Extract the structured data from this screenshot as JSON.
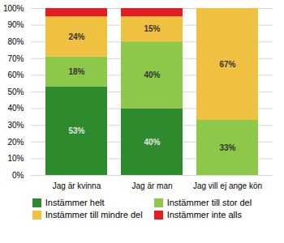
{
  "chart_data": {
    "type": "bar",
    "stacked": true,
    "data_labels": true,
    "categories": [
      "Jag är kvinna",
      "Jag är man",
      "Jag vill ej ange kön"
    ],
    "series": [
      {
        "name": "Instämmer helt",
        "color": "#2d8a2d",
        "values": [
          53,
          40,
          0
        ],
        "value_labels": [
          "53%",
          "40%",
          null
        ]
      },
      {
        "name": "Instämmer till stor del",
        "color": "#8dc84b",
        "values": [
          18,
          40,
          33
        ],
        "value_labels": [
          "18%",
          "40%",
          "33%"
        ]
      },
      {
        "name": "Instämmer till mindre del",
        "color": "#f0c040",
        "values": [
          24,
          15,
          67
        ],
        "value_labels": [
          "24%",
          "15%",
          "67%"
        ]
      },
      {
        "name": "Instämmer inte alls",
        "color": "#e02020",
        "values": [
          5,
          5,
          0
        ]
      }
    ],
    "ylim": [
      0,
      100
    ],
    "yticks": [
      {
        "value": 0,
        "label": "0%"
      },
      {
        "value": 10,
        "label": "10%"
      },
      {
        "value": 20,
        "label": "20%"
      },
      {
        "value": 30,
        "label": "30%"
      },
      {
        "value": 40,
        "label": "40%"
      },
      {
        "value": 50,
        "label": "50%"
      },
      {
        "value": 60,
        "label": "60%"
      },
      {
        "value": 70,
        "label": "70%"
      },
      {
        "value": 80,
        "label": "80%"
      },
      {
        "value": 90,
        "label": "90%"
      },
      {
        "value": 100,
        "label": "100%"
      }
    ],
    "grid": true,
    "legend": "bottom"
  }
}
